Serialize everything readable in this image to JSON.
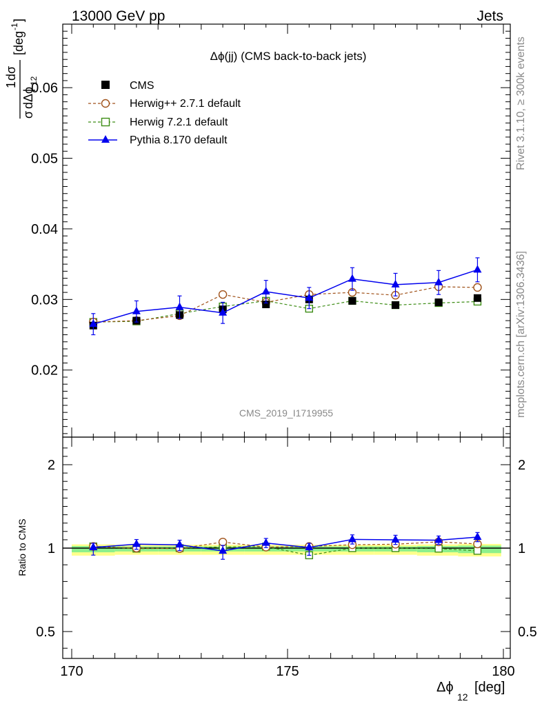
{
  "header": {
    "left": "13000 GeV pp",
    "right": "Jets"
  },
  "side": {
    "rivet": "Rivet 3.1.10, ≥ 300k events",
    "mcplots": "mcplots.cern.ch [arXiv:1306.3436]"
  },
  "plot_title": "Δϕ(jj) (CMS back-to-back jets)",
  "watermark": "CMS_2019_I1719955",
  "y_label": {
    "prefix": "1",
    "num": "dσ",
    "den_sigma": "σ",
    "den_rest": "dΔϕ",
    "den_sub": "12",
    "unit": "[deg",
    "unit_exp": "-1",
    "unit_close": "]"
  },
  "ratio_label": "Ratio to CMS",
  "x_label": {
    "main": "Δϕ",
    "sub": "12",
    "unit": "[deg]"
  },
  "colors": {
    "cms": "#000000",
    "herwigpp": "#a0521a",
    "herwig7": "#3c8c14",
    "pythia": "#0000ee",
    "band_yellow": "#ffff8c",
    "band_green": "#8cf08c"
  },
  "chart_data": {
    "type": "line",
    "x_range": [
      170,
      180
    ],
    "x_ticks": [
      "170",
      "175",
      "180"
    ],
    "x_tick_values": [
      170,
      175,
      180
    ],
    "main_ylim": [
      0.0105,
      0.069
    ],
    "main_y_ticks": [
      "0.02",
      "0.03",
      "0.04",
      "0.05",
      "0.06"
    ],
    "main_y_tick_values": [
      0.02,
      0.03,
      0.04,
      0.05,
      0.06
    ],
    "ratio_ylim": [
      0.35,
      2.3
    ],
    "ratio_y_ticks": [
      "0.5",
      "1",
      "2"
    ],
    "ratio_y_tick_values": [
      0.5,
      1,
      2
    ],
    "x": [
      170.5,
      171.5,
      172.5,
      173.5,
      174.5,
      175.5,
      176.5,
      177.5,
      178.5,
      179.4
    ],
    "series": [
      {
        "name": "CMS",
        "key": "cms",
        "marker": "square-filled",
        "line": "none",
        "values": [
          0.0263,
          0.027,
          0.0278,
          0.0286,
          0.0293,
          0.03,
          0.0298,
          0.0292,
          0.0296,
          0.0302
        ],
        "ratio": [
          1.0,
          1.0,
          1.0,
          1.0,
          1.0,
          1.0,
          1.0,
          1.0,
          1.0,
          1.0
        ],
        "band_yellow": [
          0.045,
          0.04,
          0.04,
          0.04,
          0.04,
          0.04,
          0.04,
          0.04,
          0.045,
          0.05
        ],
        "band_green": [
          0.025,
          0.02,
          0.02,
          0.02,
          0.02,
          0.02,
          0.02,
          0.02,
          0.025,
          0.03
        ]
      },
      {
        "name": "Herwig++ 2.7.1 default",
        "key": "herwigpp",
        "marker": "circle-open",
        "line": "dashed",
        "values": [
          0.0268,
          0.027,
          0.0277,
          0.0307,
          0.0296,
          0.0307,
          0.031,
          0.0306,
          0.0318,
          0.0317
        ],
        "ratio": [
          1.02,
          1.0,
          0.997,
          1.073,
          1.012,
          1.02,
          1.04,
          1.047,
          1.075,
          1.05
        ],
        "err": [
          0.0004,
          0.0004,
          0.0004,
          0.0005,
          0.0005,
          0.0005,
          0.0005,
          0.0005,
          0.0005,
          0.0005
        ]
      },
      {
        "name": "Herwig 7.2.1 default",
        "key": "herwig7",
        "marker": "square-open",
        "line": "dashed",
        "values": [
          0.0268,
          0.0269,
          0.028,
          0.029,
          0.0298,
          0.0287,
          0.0298,
          0.0292,
          0.0295,
          0.0297
        ],
        "ratio": [
          1.02,
          0.997,
          1.0,
          1.014,
          1.018,
          0.957,
          1.0,
          1.0,
          0.997,
          0.984
        ],
        "err": [
          0.0004,
          0.0004,
          0.0004,
          0.0004,
          0.0004,
          0.0004,
          0.0004,
          0.0004,
          0.0004,
          0.0004
        ]
      },
      {
        "name": "Pythia 8.170 default",
        "key": "pythia",
        "marker": "triangle-filled",
        "line": "solid",
        "values": [
          0.0265,
          0.0283,
          0.0289,
          0.0281,
          0.0311,
          0.0302,
          0.0329,
          0.0321,
          0.0324,
          0.0342
        ],
        "ratio": [
          1.008,
          1.048,
          1.04,
          0.983,
          1.061,
          1.007,
          1.104,
          1.099,
          1.095,
          1.132
        ],
        "err": [
          0.0015,
          0.0015,
          0.0016,
          0.0015,
          0.0016,
          0.0015,
          0.0016,
          0.0016,
          0.0017,
          0.0017
        ],
        "ratio_err": [
          0.05,
          0.055,
          0.055,
          0.05,
          0.055,
          0.05,
          0.055,
          0.055,
          0.05,
          0.055
        ]
      }
    ],
    "legend_position": "top-left",
    "grid": false
  }
}
